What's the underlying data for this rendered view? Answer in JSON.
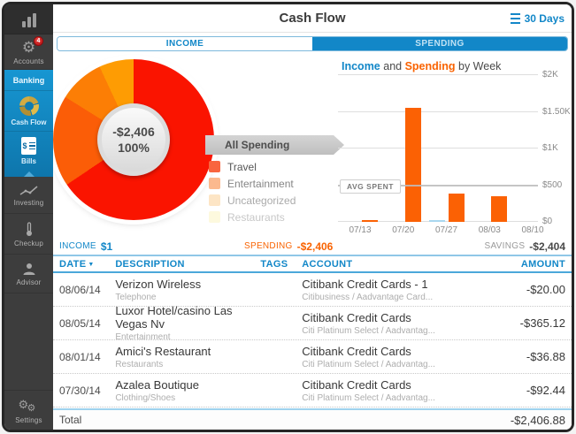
{
  "window": {
    "title": "Cash Flow",
    "period": "30 Days"
  },
  "sidebar": {
    "items": [
      {
        "id": "accounts",
        "label": "Accounts",
        "badge": "4"
      },
      {
        "id": "banking",
        "label": "Banking"
      },
      {
        "id": "cashflow",
        "label": "Cash Flow"
      },
      {
        "id": "bills",
        "label": "Bills"
      },
      {
        "id": "investing",
        "label": "Investing"
      },
      {
        "id": "checkup",
        "label": "Checkup"
      },
      {
        "id": "advisor",
        "label": "Advisor"
      },
      {
        "id": "settings",
        "label": "Settings"
      }
    ]
  },
  "tabs": {
    "income": "INCOME",
    "spending": "SPENDING",
    "active": "SPENDING"
  },
  "legend": {
    "banner": "All Spending",
    "items": [
      {
        "label": "Travel",
        "color": "#f8653e"
      },
      {
        "label": "Entertainment",
        "color": "#fa9e63"
      },
      {
        "label": "Uncategorized",
        "color": "#fbcb8b"
      },
      {
        "label": "Restaurants",
        "color": "#f8ec9c"
      }
    ]
  },
  "summary": {
    "income_label": "INCOME",
    "income_value": "$1",
    "spending_label": "SPENDING",
    "spending_value": "-$2,406",
    "savings_label": "SAVINGS",
    "savings_value": "-$2,404"
  },
  "table": {
    "columns": [
      "DATE",
      "DESCRIPTION",
      "TAGS",
      "ACCOUNT",
      "AMOUNT"
    ],
    "sort_indicator": "▼",
    "rows": [
      {
        "date": "08/06/14",
        "description": "Verizon Wireless",
        "category": "Telephone",
        "account": "Citibank Credit Cards - 1",
        "account_sub": "Citibusiness / Aadvantage Card...",
        "amount": "-$20.00"
      },
      {
        "date": "08/05/14",
        "description": "Luxor Hotel/casino Las Vegas Nv",
        "category": "Entertainment",
        "account": "Citibank Credit Cards",
        "account_sub": "Citi Platinum Select / Aadvantag...",
        "amount": "-$365.12"
      },
      {
        "date": "08/01/14",
        "description": "Amici's Restaurant",
        "category": "Restaurants",
        "account": "Citibank Credit Cards",
        "account_sub": "Citi Platinum Select / Aadvantag...",
        "amount": "-$36.88"
      },
      {
        "date": "07/30/14",
        "description": "Azalea Boutique",
        "category": "Clothing/Shoes",
        "account": "Citibank Credit Cards",
        "account_sub": "Citi Platinum Select / Aadvantag...",
        "amount": "-$92.44"
      }
    ],
    "total_label": "Total",
    "total_value": "-$2,406.88"
  },
  "chart_data": [
    {
      "type": "pie",
      "title": "All Spending",
      "center_label": "-$2,406",
      "center_sublabel": "100%",
      "start_angle_deg": 96,
      "slices": [
        {
          "label": "Travel",
          "color": "#fa1400",
          "deg": 140
        },
        {
          "label": "Entertainment",
          "color": "#fb5d07",
          "deg": 66
        },
        {
          "label": "Uncategorized",
          "color": "#fc7e05",
          "deg": 33
        },
        {
          "label": "Restaurants",
          "color": "#fe9c03",
          "deg": 26
        },
        {
          "label": "",
          "color": "#ffb104",
          "deg": 27
        },
        {
          "label": "",
          "color": "#ffc90a",
          "deg": 23
        },
        {
          "label": "",
          "color": "#ffe11e",
          "deg": 17
        },
        {
          "label": "",
          "color": "#fff07e",
          "deg": 10
        },
        {
          "label": "",
          "color": "#ffc766",
          "deg": 5
        },
        {
          "label": "",
          "color": "#fd9f38",
          "deg": 5
        },
        {
          "label": "",
          "color": "#f97d18",
          "deg": 4
        },
        {
          "label": "",
          "color": "#fb3c0a",
          "deg": 3
        },
        {
          "label": "",
          "color": "#ff3d74",
          "deg": 1
        }
      ]
    },
    {
      "type": "bar",
      "title_parts": {
        "t1": "Income",
        "t2": " and ",
        "t3": "Spending",
        "t4": " by Week"
      },
      "categories": [
        "07/13",
        "07/20",
        "07/27",
        "08/03",
        "08/10"
      ],
      "series": [
        {
          "name": "Income",
          "color": "#a9d7ef",
          "values": [
            0,
            0,
            10,
            0,
            0
          ]
        },
        {
          "name": "Spending",
          "color": "#fb6104",
          "values": [
            30,
            1560,
            380,
            350,
            0
          ]
        }
      ],
      "ylim": [
        0,
        2000
      ],
      "y_ticks": [
        {
          "label": "$0",
          "value": 0
        },
        {
          "label": "$500",
          "value": 500
        },
        {
          "label": "$1K",
          "value": 1000
        },
        {
          "label": "$1.50K",
          "value": 1500
        },
        {
          "label": "$2K",
          "value": 2000
        }
      ],
      "avg_line": {
        "label": "AVG SPENT",
        "value": 481
      },
      "grid": true,
      "legend_position": "none"
    }
  ],
  "colors": {
    "accent_blue": "#1287c8",
    "accent_orange": "#f96302",
    "bar_orange": "#fb6104",
    "income_blue": "#a9d7ef",
    "sidebar_dark": "#3d3d3d",
    "sidebar_blue_top": "#1796d2",
    "sidebar_blue_bottom": "#0e76ac",
    "badge_red": "#c8181b"
  }
}
